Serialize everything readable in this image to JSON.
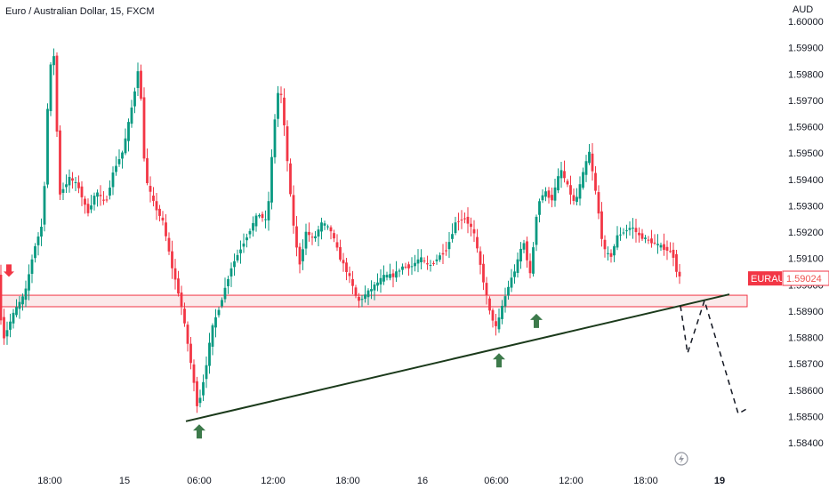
{
  "chart_data": {
    "type": "candlestick",
    "title": "Euro / Australian Dollar, 15, FXCM",
    "currency": "AUD",
    "symbol": "EURAUD",
    "last_price": "1.59024",
    "y_ticks": [
      "1.60000",
      "1.59900",
      "1.59800",
      "1.59700",
      "1.59600",
      "1.59500",
      "1.59400",
      "1.59300",
      "1.59200",
      "1.59100",
      "1.59000",
      "1.58900",
      "1.58800",
      "1.58700",
      "1.58600",
      "1.58500",
      "1.58400"
    ],
    "y_range": [
      1.5835,
      1.6003
    ],
    "x_ticks": [
      {
        "label": "18:00",
        "bold": false,
        "index": 0
      },
      {
        "label": "15",
        "bold": false,
        "index": 1
      },
      {
        "label": "06:00",
        "bold": false,
        "index": 2
      },
      {
        "label": "12:00",
        "bold": false,
        "index": 3
      },
      {
        "label": "18:00",
        "bold": false,
        "index": 4
      },
      {
        "label": "16",
        "bold": false,
        "index": 5
      },
      {
        "label": "06:00",
        "bold": false,
        "index": 6
      },
      {
        "label": "12:00",
        "bold": false,
        "index": 7
      },
      {
        "label": "18:00",
        "bold": false,
        "index": 8
      },
      {
        "label": "19",
        "bold": true,
        "index": 9
      }
    ],
    "support_zone": {
      "low": 1.5893,
      "high": 1.5895
    },
    "trendline": {
      "start_price": 1.5848,
      "end_price": 1.5895
    },
    "projection": [
      1.5892,
      1.5874,
      1.5894,
      1.5851,
      1.5853
    ],
    "arrows": [
      {
        "kind": "down",
        "color": "#f23645",
        "price": 1.5903
      },
      {
        "kind": "up",
        "color": "#3d7a4b",
        "price": 1.5847
      },
      {
        "kind": "up",
        "color": "#3d7a4b",
        "price": 1.5874
      },
      {
        "kind": "up",
        "color": "#3d7a4b",
        "price": 1.5889
      }
    ],
    "colors": {
      "up": "#089981",
      "down": "#f23645",
      "zone_border": "#f23645",
      "zone_fill": "#f8d7d9",
      "trendline": "#1b3a1b",
      "price_label": "#f23645"
    }
  }
}
